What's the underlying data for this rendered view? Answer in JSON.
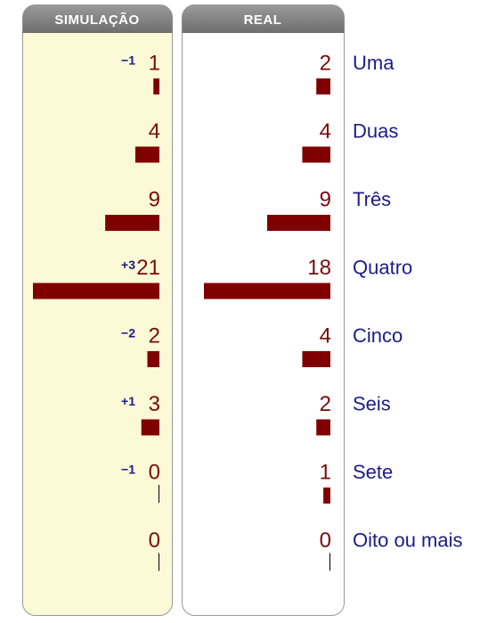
{
  "chart_data": {
    "type": "bar",
    "categories": [
      "Uma",
      "Duas",
      "Três",
      "Quatro",
      "Cinco",
      "Seis",
      "Sete",
      "Oito ou mais"
    ],
    "series": [
      {
        "name": "SIMULAÇÃO",
        "color": "#800000",
        "values": [
          1,
          4,
          9,
          21,
          2,
          3,
          0,
          0
        ],
        "differences": [
          "−1",
          null,
          null,
          "+3",
          "−2",
          "+1",
          "−1",
          null
        ]
      },
      {
        "name": "REAL",
        "color": "#800000",
        "values": [
          2,
          4,
          9,
          18,
          4,
          2,
          1,
          0
        ]
      }
    ]
  }
}
